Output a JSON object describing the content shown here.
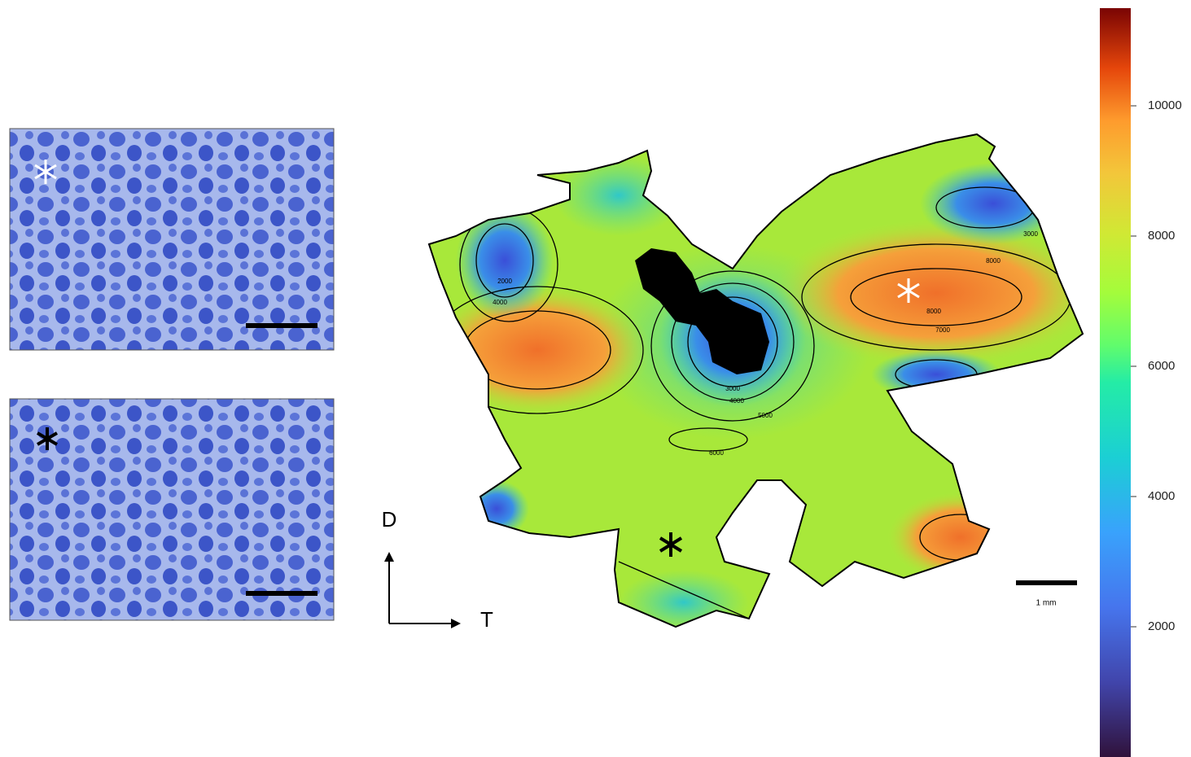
{
  "orientation": {
    "up": "D",
    "right": "T"
  },
  "scale_bar": {
    "label": "1 mm"
  },
  "map": {
    "contour_labels": [
      "2000",
      "4000",
      "3000",
      "8000",
      "8000",
      "7000",
      "3000",
      "4000",
      "5000",
      "6000"
    ]
  },
  "colorbar": {
    "lim": [
      0,
      11500
    ],
    "ticks": [
      2000,
      4000,
      6000,
      8000,
      10000
    ]
  }
}
